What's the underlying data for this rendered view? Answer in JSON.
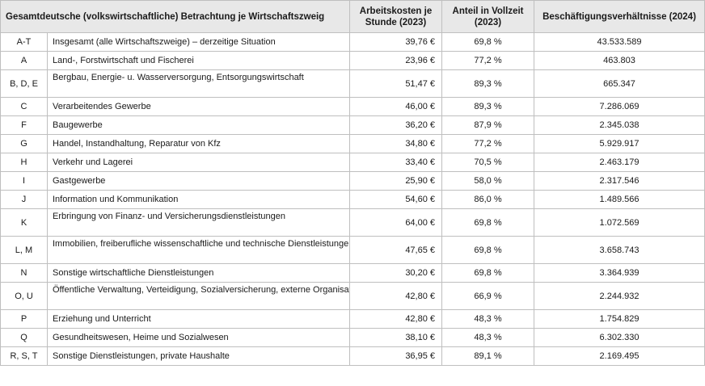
{
  "table": {
    "headers": {
      "sector": "Gesamtdeutsche (volkswirtschaftliche) Betrachtung je Wirtschaftszweig",
      "cost": "Arbeitskosten je Stunde (2023)",
      "share": "Anteil in Vollzeit (2023)",
      "employment": "Beschäftigungsverhältnisse (2024)"
    },
    "rows": [
      {
        "code": "A-T",
        "name": "Insgesamt (alle Wirtschaftszweige) – derzeitige Situation",
        "cost": "39,76 €",
        "share": "69,8 %",
        "employment": "43.533.589"
      },
      {
        "code": "A",
        "name": "Land-, Forstwirtschaft und Fischerei",
        "cost": "23,96 €",
        "share": "77,2 %",
        "employment": "463.803"
      },
      {
        "code": "B, D, E",
        "name": "Bergbau, Energie- u. Wasserversorgung, Entsorgungswirtschaft",
        "cost": "51,47 €",
        "share": "89,3 %",
        "employment": "665.347"
      },
      {
        "code": "C",
        "name": "Verarbeitendes Gewerbe",
        "cost": "46,00 €",
        "share": "89,3 %",
        "employment": "7.286.069"
      },
      {
        "code": "F",
        "name": "Baugewerbe",
        "cost": "36,20 €",
        "share": "87,9 %",
        "employment": "2.345.038"
      },
      {
        "code": "G",
        "name": "Handel, Instandhaltung, Reparatur von Kfz",
        "cost": "34,80 €",
        "share": "77,2 %",
        "employment": "5.929.917"
      },
      {
        "code": "H",
        "name": "Verkehr und Lagerei",
        "cost": "33,40 €",
        "share": "70,5 %",
        "employment": "2.463.179"
      },
      {
        "code": "I",
        "name": "Gastgewerbe",
        "cost": "25,90 €",
        "share": "58,0 %",
        "employment": "2.317.546"
      },
      {
        "code": "J",
        "name": "Information und Kommunikation",
        "cost": "54,60 €",
        "share": "86,0 %",
        "employment": "1.489.566"
      },
      {
        "code": "K",
        "name": "Erbringung von Finanz- und Versicherungsdienstleistungen",
        "cost": "64,00 €",
        "share": "69,8 %",
        "employment": "1.072.569"
      },
      {
        "code": "L, M",
        "name": "Immobilien, freiberufliche wissenschaftliche und technische Dienstleistungen",
        "cost": "47,65 €",
        "share": "69,8 %",
        "employment": "3.658.743"
      },
      {
        "code": "N",
        "name": "Sonstige wirtschaftliche Dienstleistungen",
        "cost": "30,20 €",
        "share": "69,8 %",
        "employment": "3.364.939"
      },
      {
        "code": "O, U",
        "name": "Öffentliche Verwaltung, Verteidigung, Sozialversicherung, externe Organisationen",
        "cost": "42,80 €",
        "share": "66,9 %",
        "employment": "2.244.932"
      },
      {
        "code": "P",
        "name": "Erziehung und Unterricht",
        "cost": "42,80 €",
        "share": "48,3 %",
        "employment": "1.754.829"
      },
      {
        "code": "Q",
        "name": "Gesundheitswesen, Heime und Sozialwesen",
        "cost": "38,10 €",
        "share": "48,3 %",
        "employment": "6.302.330"
      },
      {
        "code": "R, S, T",
        "name": "Sonstige Dienstleistungen, private Haushalte",
        "cost": "36,95 €",
        "share": "89,1 %",
        "employment": "2.169.495"
      }
    ]
  }
}
